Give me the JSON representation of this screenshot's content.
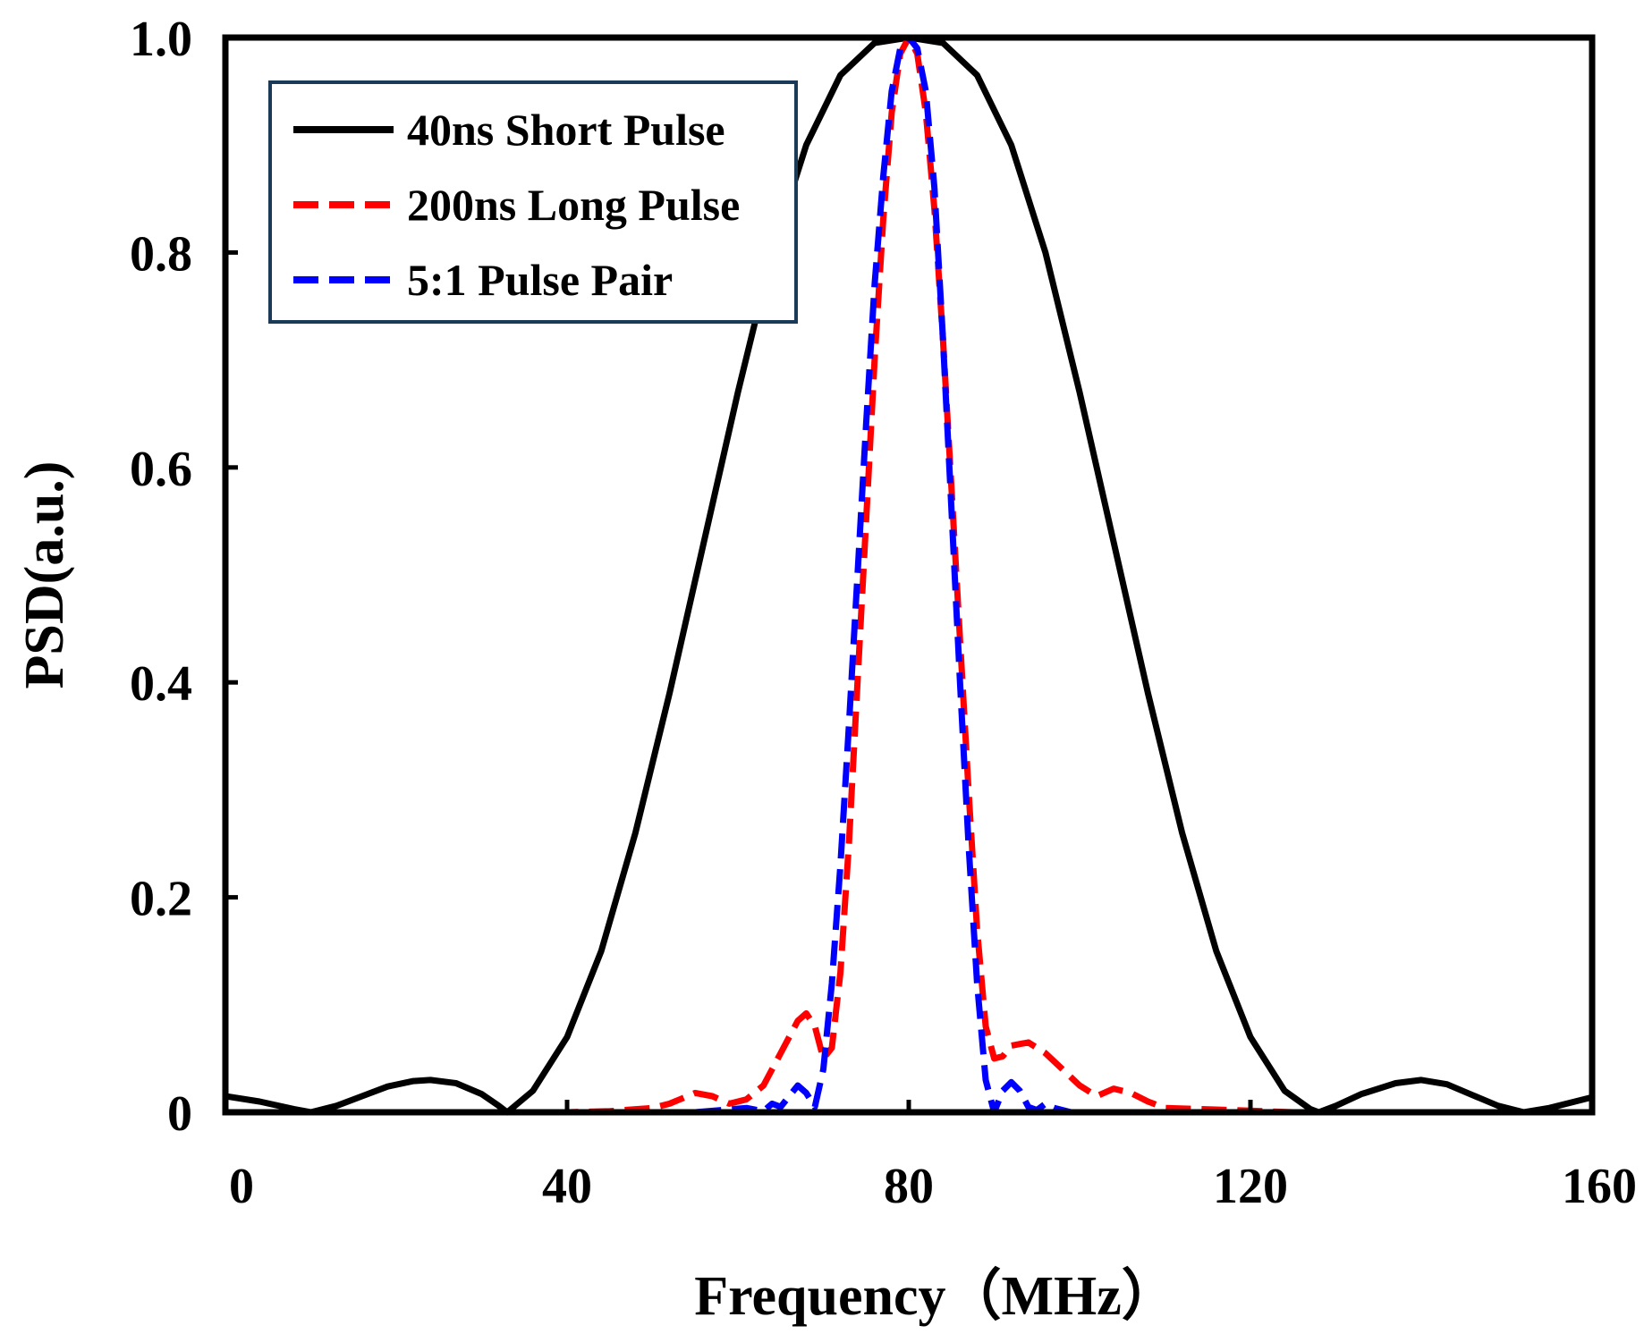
{
  "chart_data": {
    "type": "line",
    "title": "",
    "xlabel": "Frequency（MHz）",
    "ylabel": "PSD(a.u.)",
    "xlim": [
      0,
      160
    ],
    "ylim": [
      0,
      1.0
    ],
    "x_ticks": [
      0,
      40,
      80,
      120,
      160
    ],
    "x_tick_labels": [
      "0",
      "40",
      "80",
      "120",
      "160"
    ],
    "y_ticks": [
      0,
      0.2,
      0.4,
      0.6,
      0.8,
      1.0
    ],
    "y_tick_labels": [
      "0",
      "0.2",
      "0.4",
      "0.6",
      "0.8",
      "1.0"
    ],
    "grid": false,
    "legend_position": "top-left",
    "series": [
      {
        "name": "40ns Short Pulse",
        "color": "#000000",
        "style": "solid",
        "points": [
          [
            0,
            0.015
          ],
          [
            4,
            0.01
          ],
          [
            8,
            0.003
          ],
          [
            10,
            0.0
          ],
          [
            13,
            0.006
          ],
          [
            16,
            0.015
          ],
          [
            19,
            0.024
          ],
          [
            22,
            0.029
          ],
          [
            24,
            0.03
          ],
          [
            27,
            0.027
          ],
          [
            30,
            0.017
          ],
          [
            32,
            0.006
          ],
          [
            33,
            0.0
          ],
          [
            36,
            0.02
          ],
          [
            40,
            0.07
          ],
          [
            44,
            0.15
          ],
          [
            48,
            0.26
          ],
          [
            52,
            0.39
          ],
          [
            56,
            0.53
          ],
          [
            60,
            0.67
          ],
          [
            64,
            0.8
          ],
          [
            68,
            0.9
          ],
          [
            72,
            0.965
          ],
          [
            76,
            0.995
          ],
          [
            80,
            1.0
          ],
          [
            84,
            0.995
          ],
          [
            88,
            0.965
          ],
          [
            92,
            0.9
          ],
          [
            96,
            0.8
          ],
          [
            100,
            0.67
          ],
          [
            104,
            0.53
          ],
          [
            108,
            0.39
          ],
          [
            112,
            0.26
          ],
          [
            116,
            0.15
          ],
          [
            120,
            0.07
          ],
          [
            124,
            0.02
          ],
          [
            127,
            0.003
          ],
          [
            128,
            0.0
          ],
          [
            130,
            0.006
          ],
          [
            133,
            0.017
          ],
          [
            137,
            0.027
          ],
          [
            140,
            0.03
          ],
          [
            143,
            0.026
          ],
          [
            146,
            0.016
          ],
          [
            149,
            0.006
          ],
          [
            152,
            0.0
          ],
          [
            155,
            0.004
          ],
          [
            158,
            0.01
          ],
          [
            160,
            0.014
          ]
        ]
      },
      {
        "name": "200ns Long Pulse",
        "color": "#ff0000",
        "style": "dashed",
        "points": [
          [
            30,
            0.0
          ],
          [
            40,
            0.0
          ],
          [
            45,
            0.001
          ],
          [
            50,
            0.004
          ],
          [
            52,
            0.008
          ],
          [
            55,
            0.018
          ],
          [
            57,
            0.015
          ],
          [
            59,
            0.008
          ],
          [
            61,
            0.012
          ],
          [
            63,
            0.025
          ],
          [
            65,
            0.055
          ],
          [
            67,
            0.085
          ],
          [
            68,
            0.092
          ],
          [
            69,
            0.08
          ],
          [
            70,
            0.05
          ],
          [
            71,
            0.06
          ],
          [
            72,
            0.13
          ],
          [
            73,
            0.25
          ],
          [
            74,
            0.4
          ],
          [
            75,
            0.55
          ],
          [
            76,
            0.7
          ],
          [
            77,
            0.83
          ],
          [
            78,
            0.93
          ],
          [
            79,
            0.985
          ],
          [
            80,
            1.0
          ],
          [
            81,
            0.985
          ],
          [
            82,
            0.93
          ],
          [
            83,
            0.84
          ],
          [
            84,
            0.72
          ],
          [
            85,
            0.58
          ],
          [
            86,
            0.44
          ],
          [
            87,
            0.3
          ],
          [
            88,
            0.17
          ],
          [
            89,
            0.08
          ],
          [
            90,
            0.05
          ],
          [
            91,
            0.052
          ],
          [
            92,
            0.062
          ],
          [
            94,
            0.065
          ],
          [
            96,
            0.055
          ],
          [
            98,
            0.04
          ],
          [
            100,
            0.025
          ],
          [
            102,
            0.015
          ],
          [
            104,
            0.022
          ],
          [
            106,
            0.018
          ],
          [
            108,
            0.01
          ],
          [
            110,
            0.004
          ],
          [
            114,
            0.003
          ],
          [
            118,
            0.002
          ],
          [
            125,
            0.0
          ],
          [
            130,
            0.0
          ]
        ]
      },
      {
        "name": "5:1 Pulse Pair",
        "color": "#0000ff",
        "style": "dashed",
        "points": [
          [
            30,
            0.0
          ],
          [
            45,
            0.0
          ],
          [
            55,
            0.0
          ],
          [
            58,
            0.002
          ],
          [
            61,
            0.004
          ],
          [
            63,
            0.001
          ],
          [
            64,
            0.008
          ],
          [
            65,
            0.005
          ],
          [
            66,
            0.015
          ],
          [
            67,
            0.025
          ],
          [
            68,
            0.018
          ],
          [
            69,
            0.005
          ],
          [
            70,
            0.04
          ],
          [
            71,
            0.12
          ],
          [
            72,
            0.23
          ],
          [
            73,
            0.36
          ],
          [
            74,
            0.5
          ],
          [
            75,
            0.64
          ],
          [
            76,
            0.77
          ],
          [
            77,
            0.87
          ],
          [
            78,
            0.95
          ],
          [
            79,
            0.99
          ],
          [
            80,
            1.0
          ],
          [
            81,
            0.99
          ],
          [
            82,
            0.95
          ],
          [
            83,
            0.86
          ],
          [
            84,
            0.72
          ],
          [
            85,
            0.56
          ],
          [
            86,
            0.4
          ],
          [
            87,
            0.25
          ],
          [
            88,
            0.12
          ],
          [
            89,
            0.03
          ],
          [
            90,
            0.0
          ],
          [
            91,
            0.02
          ],
          [
            92,
            0.028
          ],
          [
            93,
            0.02
          ],
          [
            94,
            0.005
          ],
          [
            95,
            0.002
          ],
          [
            96,
            0.008
          ],
          [
            97,
            0.004
          ],
          [
            99,
            0.0
          ],
          [
            110,
            0.0
          ]
        ]
      }
    ]
  }
}
